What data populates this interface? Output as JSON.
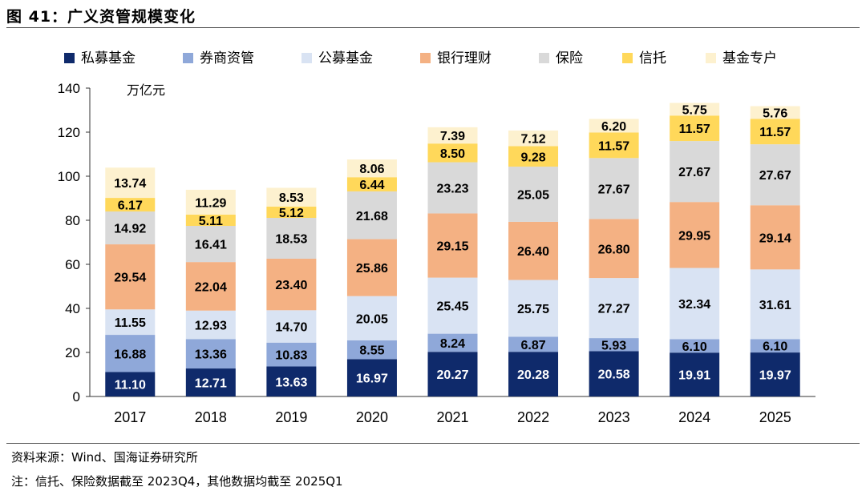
{
  "figure": {
    "title": "图 41：广义资管规模变化",
    "source": "资料来源：Wind、国海证券研究所",
    "note": "注：信托、保险数据截至 2023Q4，其他数据均截至 2025Q1"
  },
  "chart_data": {
    "type": "bar",
    "stacked": true,
    "categories": [
      "2017",
      "2018",
      "2019",
      "2020",
      "2021",
      "2022",
      "2023",
      "2024",
      "2025"
    ],
    "unit_label": "万亿元",
    "ylim": [
      0,
      140
    ],
    "yticks": [
      0,
      20,
      40,
      60,
      80,
      100,
      120,
      140
    ],
    "grid": false,
    "legend_position": "top",
    "series": [
      {
        "name": "私募基金",
        "color": "#0f2a6b",
        "label_color": "#ffffff",
        "values": [
          11.1,
          12.71,
          13.63,
          16.97,
          20.27,
          20.28,
          20.58,
          19.91,
          19.97
        ],
        "labels": [
          "11.10",
          "12.71",
          "13.63",
          "16.97",
          "20.27",
          "20.28",
          "20.58",
          "19.91",
          "19.97"
        ]
      },
      {
        "name": "券商资管",
        "color": "#8fa8d9",
        "label_color": "#000000",
        "values": [
          16.88,
          13.36,
          10.83,
          8.55,
          8.24,
          6.87,
          5.93,
          6.1,
          6.1
        ],
        "labels": [
          "16.88",
          "13.36",
          "10.83",
          "8.55",
          "8.24",
          "6.87",
          "5.93",
          "6.10",
          "6.10"
        ]
      },
      {
        "name": "公募基金",
        "color": "#d9e3f3",
        "label_color": "#000000",
        "values": [
          11.55,
          12.93,
          14.7,
          20.05,
          25.45,
          25.75,
          27.27,
          32.34,
          31.61
        ],
        "labels": [
          "11.55",
          "12.93",
          "14.70",
          "20.05",
          "25.45",
          "25.75",
          "27.27",
          "32.34",
          "31.61"
        ]
      },
      {
        "name": "银行理财",
        "color": "#f4b183",
        "label_color": "#000000",
        "values": [
          29.54,
          22.04,
          23.4,
          25.86,
          29.15,
          26.4,
          26.8,
          29.95,
          29.14
        ],
        "labels": [
          "29.54",
          "22.04",
          "23.40",
          "25.86",
          "29.15",
          "26.40",
          "26.80",
          "29.95",
          "29.14"
        ]
      },
      {
        "name": "保险",
        "color": "#d9d9d9",
        "label_color": "#000000",
        "values": [
          14.92,
          16.41,
          18.53,
          21.68,
          23.23,
          25.05,
          27.67,
          27.67,
          27.67
        ],
        "labels": [
          "14.92",
          "16.41",
          "18.53",
          "21.68",
          "23.23",
          "25.05",
          "27.67",
          "27.67",
          "27.67"
        ]
      },
      {
        "name": "信托",
        "color": "#ffd85a",
        "label_color": "#000000",
        "values": [
          6.17,
          5.11,
          5.12,
          6.44,
          8.5,
          9.28,
          11.57,
          11.57,
          11.57
        ],
        "labels": [
          "6.17",
          "5.11",
          "5.12",
          "6.44",
          "8.50",
          "9.28",
          "11.57",
          "11.57",
          "11.57"
        ]
      },
      {
        "name": "基金专户",
        "color": "#fdf1cf",
        "label_color": "#000000",
        "values": [
          13.74,
          11.29,
          8.53,
          8.06,
          7.39,
          7.12,
          6.2,
          5.75,
          5.76
        ],
        "labels": [
          "13.74",
          "11.29",
          "8.53",
          "8.06",
          "7.39",
          "7.12",
          "6.20",
          "5.75",
          "5.76"
        ]
      }
    ]
  }
}
